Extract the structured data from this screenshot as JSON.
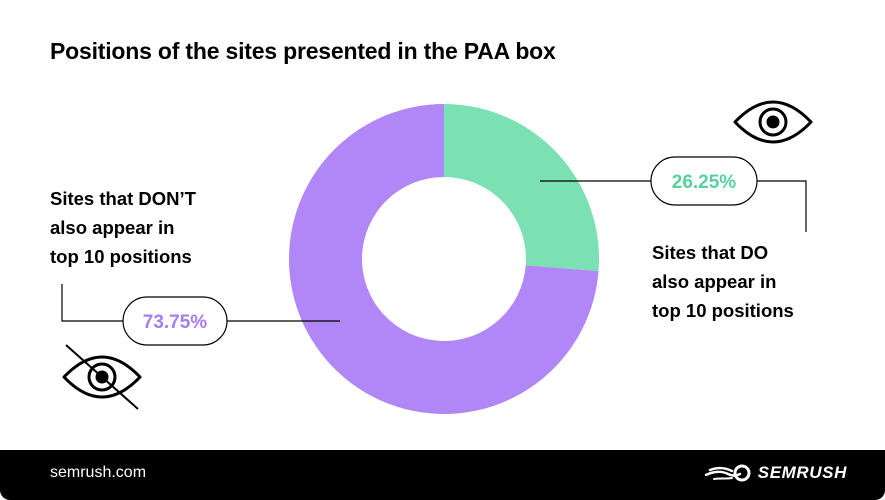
{
  "chart_data": {
    "type": "pie",
    "title": "Positions of the sites presented in the PAA box",
    "categories": [
      "Sites that DO also appear in top 10 positions",
      "Sites that DON'T also appear in top 10 positions"
    ],
    "values": [
      26.25,
      73.75
    ],
    "value_labels": [
      "26.25%",
      "73.75%"
    ],
    "donut": true,
    "start_angle_deg": 0,
    "colors": [
      "#7be0b2",
      "#b186f7"
    ],
    "label_colors": [
      "#58d19e",
      "#a97cf6"
    ]
  },
  "labels": {
    "left_lines": [
      "Sites that DON’T",
      "also appear in",
      "top 10 positions"
    ],
    "right_lines": [
      "Sites that DO",
      "also appear in",
      "top 10 positions"
    ]
  },
  "icons": {
    "top_right": "eye-icon",
    "bottom_left": "eye-crossed-icon"
  },
  "footer": {
    "url": "semrush.com",
    "brand": "SEMRUSH",
    "background": "#000000"
  }
}
